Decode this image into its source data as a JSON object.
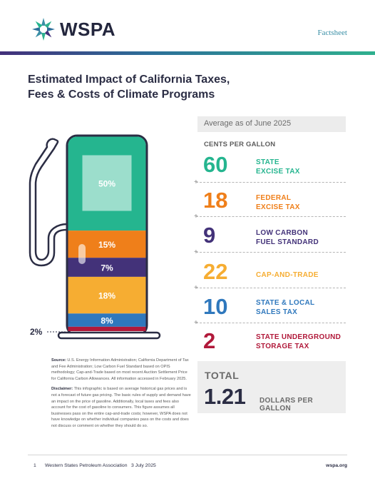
{
  "header": {
    "logo_text": "WSPA",
    "doc_type": "Factsheet"
  },
  "title": {
    "line1": "Estimated Impact of California Taxes,",
    "line2": "Fees & Costs of Climate Programs"
  },
  "as_of": "Average as of June 2025",
  "unit_heading": "CENTS PER GALLON",
  "items": [
    {
      "value": "60",
      "label1": "STATE",
      "label2": "EXCISE TAX",
      "color": "#25b58f"
    },
    {
      "value": "18",
      "label1": "FEDERAL",
      "label2": "EXCISE TAX",
      "color": "#ef7f1a"
    },
    {
      "value": "9",
      "label1": "LOW CARBON",
      "label2": "FUEL STANDARD",
      "color": "#433279"
    },
    {
      "value": "22",
      "label1": "CAP-AND-TRADE",
      "label2": "",
      "color": "#f6ad32"
    },
    {
      "value": "10",
      "label1": "STATE & LOCAL",
      "label2": "SALES TAX",
      "color": "#2f78bd"
    },
    {
      "value": "2",
      "label1": "STATE UNDERGROUND",
      "label2": "STORAGE TAX",
      "color": "#b1193a"
    }
  ],
  "total": {
    "label": "TOTAL",
    "value": "1.21",
    "unit": "DOLLARS PER GALLON"
  },
  "pump_segments": [
    {
      "label": "50%",
      "percent": 50,
      "color": "#25b58f"
    },
    {
      "label": "15%",
      "percent": 15,
      "color": "#ef7f1a"
    },
    {
      "label": "7%",
      "percent": 7,
      "color": "#433279"
    },
    {
      "label": "18%",
      "percent": 18,
      "color": "#f6ad32"
    },
    {
      "label": "8%",
      "percent": 8,
      "color": "#2f78bd"
    },
    {
      "label": "2%",
      "percent": 2,
      "color": "#b1193a"
    }
  ],
  "notes": {
    "source_label": "Source:",
    "source_text": "U.S. Energy Information Administration; California Department of Tax and Fee Administration; Low Carbon Fuel Standard based on OPIS methodology; Cap-and-Trade based on most recent Auction Settlement Price for California Carbon Allowances. All information accessed in February 2025.",
    "disclaimer_label": "Disclaimer:",
    "disclaimer_text": "This infographic is based on average historical gas prices and is not a forecast of future gas pricing. The basic rules of supply and demand have an impact on the price of gasoline. Additionally, local taxes and fees also account for the cost of gasoline to consumers. This figure assumes all businesses pass on the entire cap-and-trade costs; however, WSPA does not have knowledge on whether individual companies pass on the costs and does not discuss or comment on whether they should do so."
  },
  "footer": {
    "page": "1",
    "org": "Western States Petroleum Association",
    "date": "3 July 2025",
    "site": "wspa.org"
  }
}
